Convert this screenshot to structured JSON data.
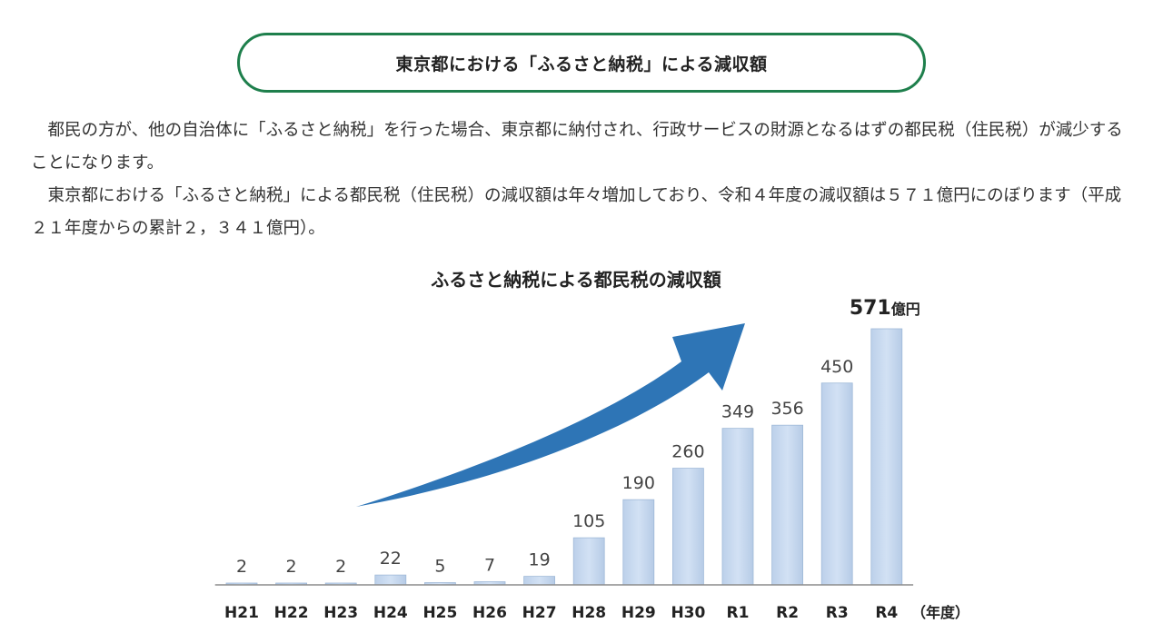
{
  "page": {
    "heading": "東京都における「ふるさと納税」による減収額",
    "paragraphs": [
      "都民の方が、他の自治体に「ふるさと納税」を行った場合、東京都に納付され、行政サービスの財源となるはずの都民税（住民税）が減少することになります。",
      "東京都における「ふるさと納税」による都民税（住民税）の減収額は年々増加しており、令和４年度の減収額は５７１億円にのぼります（平成２１年度からの累計２，３４１億円）。"
    ]
  },
  "colors": {
    "accent_border": "#1e7f4c",
    "bar_fill": "#c6d9f0",
    "bar_stroke": "#9fb9d8",
    "arrow": "#2e75b6",
    "axis": "#8c8c8c"
  },
  "chart_data": {
    "type": "bar",
    "title": "ふるさと納税による都民税の減収額",
    "categories": [
      "H21",
      "H22",
      "H23",
      "H24",
      "H25",
      "H26",
      "H27",
      "H28",
      "H29",
      "H30",
      "R1",
      "R2",
      "R3",
      "R4"
    ],
    "values": [
      2,
      2,
      2,
      22,
      5,
      7,
      19,
      105,
      190,
      260,
      349,
      356,
      450,
      571
    ],
    "value_labels": [
      "2",
      "2",
      "2",
      "22",
      "5",
      "7",
      "19",
      "105",
      "190",
      "260",
      "349",
      "356",
      "450",
      "571"
    ],
    "last_value_unit": "億円",
    "xlabel": "（年度）",
    "ylabel": "",
    "ylim": [
      0,
      571
    ],
    "grid": false,
    "annotations": [
      "increasing-trend-arrow"
    ]
  }
}
